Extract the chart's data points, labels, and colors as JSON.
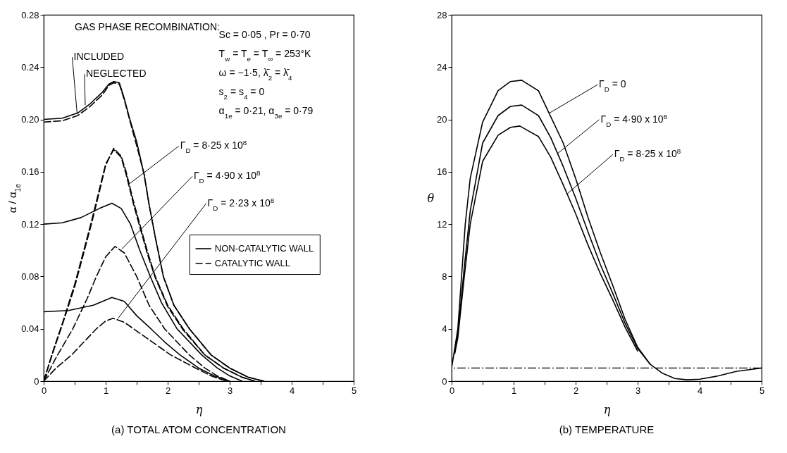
{
  "chart_data": [
    {
      "type": "line",
      "title": "(a) TOTAL ATOM CONCENTRATION",
      "xlabel": "η",
      "ylabel": "α / α$_{1e}$",
      "xlim": [
        0,
        5
      ],
      "ylim": [
        0,
        0.28
      ],
      "xticks": [
        0,
        {
          "value": 0.5,
          "label": null
        },
        1,
        {
          "value": 1.5,
          "label": null
        },
        2,
        {
          "value": 2.5,
          "label": null
        },
        3,
        {
          "value": 3.5,
          "label": null
        },
        4,
        {
          "value": 4.5,
          "label": null
        },
        5
      ],
      "yticks": [
        0,
        0.04,
        0.08,
        0.12,
        0.16,
        {
          "value": 0.2,
          "label": "0.20"
        },
        0.24,
        0.28
      ],
      "legend": "right",
      "series": [
        {
          "name": "NON-CATALYTIC WALL",
          "color": "#000000",
          "line_style": "solid",
          "x": [
            0,
            0.3,
            0.55,
            0.75,
            0.95,
            1.05,
            1.13,
            1.22,
            1.3,
            1.39,
            1.5,
            1.62,
            1.7,
            1.8,
            1.93,
            2.1,
            2.35,
            2.7,
            3.0,
            3.3,
            3.55
          ],
          "values": [
            0.2,
            0.201,
            0.205,
            0.212,
            0.221,
            0.227,
            0.229,
            0.228,
            0.216,
            0.2,
            0.183,
            0.158,
            0.135,
            0.11,
            0.08,
            0.058,
            0.04,
            0.02,
            0.01,
            0.003,
            0
          ]
        },
        {
          "color": "#000000",
          "line_style": "dashed",
          "x": [
            0,
            0.3,
            0.55,
            0.75,
            0.95,
            1.05,
            1.13,
            1.22,
            1.3,
            1.39,
            1.5,
            1.62,
            1.7,
            1.8,
            1.93,
            2.1,
            2.35,
            2.7,
            3.0,
            3.3,
            3.55
          ],
          "values": [
            0.198,
            0.199,
            0.203,
            0.21,
            0.219,
            0.226,
            0.228,
            0.227,
            0.215,
            0.199,
            0.18,
            0.158,
            0.135,
            0.11,
            0.08,
            0.058,
            0.04,
            0.02,
            0.01,
            0.003,
            0
          ]
        },
        {
          "name": "CATALYTIC WALL",
          "color": "#000000",
          "line_style": "dashed",
          "x": [
            0,
            0.15,
            0.3,
            0.5,
            0.77,
            0.9,
            1.0,
            1.13,
            1.25,
            1.33,
            1.45,
            1.55,
            1.68,
            1.8,
            2.0,
            2.25,
            2.6,
            2.9,
            3.2,
            3.4
          ],
          "values": [
            0,
            0.022,
            0.043,
            0.072,
            0.12,
            0.145,
            0.165,
            0.178,
            0.172,
            0.16,
            0.137,
            0.12,
            0.098,
            0.08,
            0.058,
            0.04,
            0.02,
            0.01,
            0.003,
            0
          ]
        },
        {
          "color": "#000000",
          "line_style": "dashed",
          "x": [
            0,
            0.15,
            0.3,
            0.5,
            0.77,
            0.9,
            1.0,
            1.13,
            1.25,
            1.33,
            1.45,
            1.55,
            1.68,
            1.8,
            2.0,
            2.25,
            2.6,
            2.9,
            3.2,
            3.4
          ],
          "values": [
            0,
            0.023,
            0.044,
            0.074,
            0.122,
            0.147,
            0.166,
            0.177,
            0.171,
            0.158,
            0.135,
            0.118,
            0.096,
            0.079,
            0.057,
            0.039,
            0.02,
            0.01,
            0.003,
            0
          ]
        },
        {
          "color": "#000000",
          "line_style": "solid",
          "x": [
            0,
            0.3,
            0.6,
            0.9,
            1.1,
            1.25,
            1.4,
            1.55,
            1.72,
            1.9,
            2.15,
            2.55,
            2.8,
            3.0,
            3.2
          ],
          "values": [
            0.12,
            0.121,
            0.125,
            0.132,
            0.136,
            0.132,
            0.12,
            0.1,
            0.08,
            0.06,
            0.04,
            0.02,
            0.01,
            0.004,
            0
          ]
        },
        {
          "color": "#000000",
          "line_style": "dashed",
          "x": [
            0,
            0.2,
            0.47,
            0.7,
            0.85,
            1.0,
            1.15,
            1.3,
            1.5,
            1.7,
            1.95,
            2.35,
            2.6,
            2.8,
            3.0
          ],
          "values": [
            0,
            0.018,
            0.04,
            0.063,
            0.08,
            0.095,
            0.103,
            0.098,
            0.08,
            0.058,
            0.04,
            0.02,
            0.01,
            0.004,
            0
          ]
        },
        {
          "color": "#000000",
          "line_style": "solid",
          "x": [
            0,
            0.4,
            0.8,
            1.1,
            1.3,
            1.5,
            1.73,
            1.95,
            2.2,
            2.5,
            2.75,
            3.0
          ],
          "values": [
            0.053,
            0.054,
            0.058,
            0.064,
            0.061,
            0.05,
            0.04,
            0.03,
            0.02,
            0.01,
            0.004,
            0
          ]
        },
        {
          "color": "#000000",
          "line_style": "dashed",
          "x": [
            0,
            0.2,
            0.45,
            0.85,
            1.0,
            1.12,
            1.3,
            1.45,
            1.75,
            2.05,
            2.45,
            2.7,
            2.95
          ],
          "values": [
            0,
            0.01,
            0.02,
            0.04,
            0.046,
            0.048,
            0.045,
            0.04,
            0.03,
            0.02,
            0.01,
            0.004,
            0
          ]
        }
      ],
      "annotations": [
        "GAS PHASE RECOMBINATION:",
        {
          "text": "INCLUDED",
          "x": 0.54,
          "y": 0.204
        },
        {
          "text": "NEGLECTED",
          "x": 0.67,
          "y": 0.211
        },
        "Sc = 0·05 , Pr = 0·70",
        "T$_{w}$ = T$_{e}$ = T$_{∞}$ = 253°K",
        "ω = −1·5, λ̄$_{2}$ = λ̄$_{4}$",
        "s$_{2}$ = s$_{4}$ = 0",
        "α$_{1e}$ = 0·21, α$_{3e}$ = 0·79",
        {
          "text": "Γ$_{D}$ = 8·25 x 10$^{8}$",
          "x": 1.36,
          "y": 0.15
        },
        {
          "text": "Γ$_{D}$ = 4·90 x 10$^{8}$",
          "x": 1.26,
          "y": 0.101
        },
        {
          "text": "Γ$_{D}$ = 2·23 x 10$^{8}$",
          "x": 1.2,
          "y": 0.048
        }
      ]
    },
    {
      "type": "line",
      "title": "(b) TEMPERATURE",
      "xlabel": "η",
      "ylabel": "θ",
      "xlim": [
        0,
        5
      ],
      "ylim": [
        0,
        28
      ],
      "xticks": [
        0,
        {
          "value": 0.5,
          "label": null
        },
        1,
        {
          "value": 1.5,
          "label": null
        },
        2,
        {
          "value": 2.5,
          "label": null
        },
        3,
        {
          "value": 3.5,
          "label": null
        },
        4,
        {
          "value": 4.5,
          "label": null
        },
        5
      ],
      "yticks": [
        0,
        4,
        8,
        12,
        16,
        20,
        24,
        28
      ],
      "series": [
        {
          "color": "#000000",
          "line_style": "solid",
          "x": [
            0,
            0.1,
            0.16,
            0.22,
            0.3,
            0.5,
            0.75,
            0.95,
            1.13,
            1.4,
            1.6,
            1.8,
            2.0,
            2.2,
            2.4,
            2.6,
            2.8,
            3.0,
            3.2,
            3.4,
            3.6,
            3.8,
            4.0,
            4.3,
            4.6,
            5.0
          ],
          "values": [
            1,
            4,
            8,
            12,
            15.5,
            19.8,
            22.2,
            22.9,
            23.0,
            22.2,
            20.2,
            18.2,
            15.5,
            12.5,
            9.8,
            7.3,
            4.7,
            2.6,
            1.3,
            0.6,
            0.2,
            0.1,
            0.15,
            0.4,
            0.75,
            1.0
          ]
        },
        {
          "color": "#000000",
          "line_style": "solid",
          "x": [
            0.05,
            0.1,
            0.2,
            0.3,
            0.5,
            0.75,
            0.95,
            1.13,
            1.4,
            1.6,
            1.8,
            2.0,
            2.2,
            2.4,
            2.6,
            2.8,
            3.0,
            3.2
          ],
          "values": [
            2.2,
            3.6,
            8.5,
            13,
            18.2,
            20.3,
            21.0,
            21.1,
            20.3,
            18.6,
            16.4,
            14.0,
            11.4,
            8.9,
            6.7,
            4.4,
            2.5,
            1.3
          ]
        },
        {
          "color": "#000000",
          "line_style": "solid",
          "x": [
            0.05,
            0.1,
            0.2,
            0.3,
            0.5,
            0.75,
            0.95,
            1.1,
            1.4,
            1.6,
            1.8,
            2.0,
            2.2,
            2.4,
            2.6,
            2.8,
            3.0
          ],
          "values": [
            2.1,
            3.3,
            7.8,
            12,
            16.8,
            18.8,
            19.4,
            19.5,
            18.7,
            17.1,
            15.0,
            12.8,
            10.4,
            8.2,
            6.2,
            4.1,
            2.3
          ]
        }
      ],
      "ref_lines": [
        {
          "axis": "y",
          "value": 1,
          "line_style": "dashed",
          "color": "#000000"
        }
      ],
      "annotations": [
        {
          "text": "Γ$_{D}$ = 0",
          "x": 1.58,
          "y": 20.5
        },
        {
          "text": "Γ$_{D}$ = 4·90 x 10$^{8}$",
          "x": 1.71,
          "y": 17.4
        },
        {
          "text": "Γ$_{D}$ = 8·25 x 10$^{8}$",
          "x": 1.86,
          "y": 14.3
        }
      ]
    }
  ]
}
